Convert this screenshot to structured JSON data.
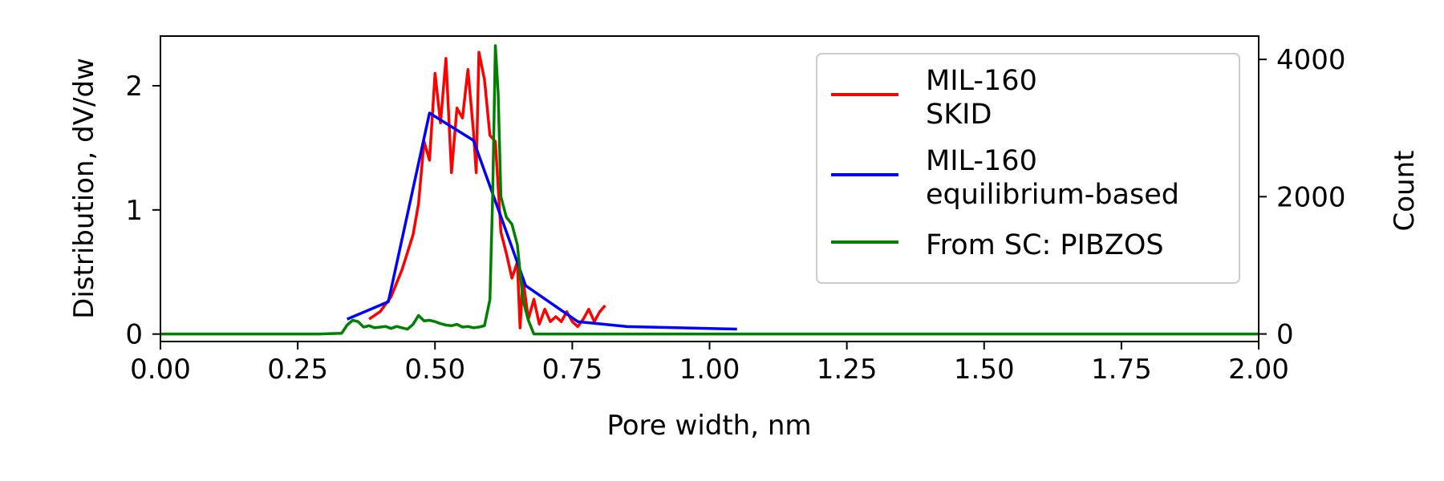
{
  "chart_data": {
    "type": "line",
    "title": "",
    "xlabel": "Pore width, nm",
    "ylabel": "Distribution, dV/dw",
    "y2label": "Count",
    "y2label_color": "#008000",
    "xlim": [
      0,
      2
    ],
    "ylim": [
      -0.06,
      2.4
    ],
    "y2lim": [
      -110,
      4340
    ],
    "x_ticks": [
      "0.00",
      "0.25",
      "0.50",
      "0.75",
      "1.00",
      "1.25",
      "1.50",
      "1.75",
      "2.00"
    ],
    "y_ticks": [
      "0",
      "1",
      "2"
    ],
    "y2_ticks": [
      "0",
      "2000",
      "4000"
    ],
    "grid": false,
    "legend_position": "top-right",
    "series": [
      {
        "name": "MIL-160\nSKID",
        "axis": "left",
        "color": "#ff0000",
        "x": [
          0.38,
          0.4,
          0.42,
          0.44,
          0.46,
          0.47,
          0.48,
          0.49,
          0.5,
          0.51,
          0.52,
          0.53,
          0.54,
          0.55,
          0.56,
          0.57,
          0.575,
          0.58,
          0.59,
          0.6,
          0.61,
          0.62,
          0.63,
          0.64,
          0.65,
          0.655,
          0.66,
          0.67,
          0.68,
          0.69,
          0.7,
          0.71,
          0.72,
          0.73,
          0.74,
          0.75,
          0.76,
          0.77,
          0.78,
          0.79,
          0.8,
          0.81
        ],
        "y": [
          0.12,
          0.18,
          0.3,
          0.52,
          0.8,
          1.05,
          1.55,
          1.4,
          2.1,
          1.7,
          2.22,
          1.3,
          1.82,
          1.74,
          2.13,
          1.63,
          1.3,
          2.27,
          2.05,
          1.6,
          1.55,
          0.82,
          0.65,
          0.45,
          0.58,
          0.05,
          0.45,
          0.12,
          0.28,
          0.08,
          0.2,
          0.1,
          0.14,
          0.1,
          0.18,
          0.1,
          0.06,
          0.12,
          0.2,
          0.1,
          0.18,
          0.23
        ]
      },
      {
        "name": "MIL-160\nequilibrium-based",
        "axis": "left",
        "color": "#0000ff",
        "x": [
          0.34,
          0.415,
          0.49,
          0.57,
          0.64,
          0.665,
          0.76,
          0.85,
          1.05
        ],
        "y": [
          0.12,
          0.26,
          1.78,
          1.56,
          0.7,
          0.39,
          0.1,
          0.06,
          0.04
        ]
      },
      {
        "name": "From SC: PIBZOS",
        "axis": "right",
        "color": "#008000",
        "x": [
          0.0,
          0.29,
          0.33,
          0.34,
          0.35,
          0.36,
          0.37,
          0.38,
          0.39,
          0.4,
          0.41,
          0.42,
          0.43,
          0.44,
          0.45,
          0.46,
          0.47,
          0.48,
          0.49,
          0.5,
          0.51,
          0.52,
          0.53,
          0.54,
          0.55,
          0.56,
          0.57,
          0.58,
          0.59,
          0.6,
          0.605,
          0.61,
          0.615,
          0.62,
          0.63,
          0.64,
          0.65,
          0.66,
          0.67,
          0.68,
          0.69,
          0.7,
          1.0,
          2.0
        ],
        "y": [
          0,
          0,
          10,
          130,
          200,
          180,
          100,
          120,
          90,
          100,
          110,
          80,
          110,
          90,
          70,
          140,
          270,
          190,
          200,
          180,
          150,
          130,
          120,
          140,
          100,
          110,
          90,
          100,
          120,
          500,
          2000,
          4200,
          3500,
          2000,
          1700,
          1600,
          1300,
          500,
          200,
          0,
          0,
          0,
          0,
          0
        ]
      }
    ]
  }
}
